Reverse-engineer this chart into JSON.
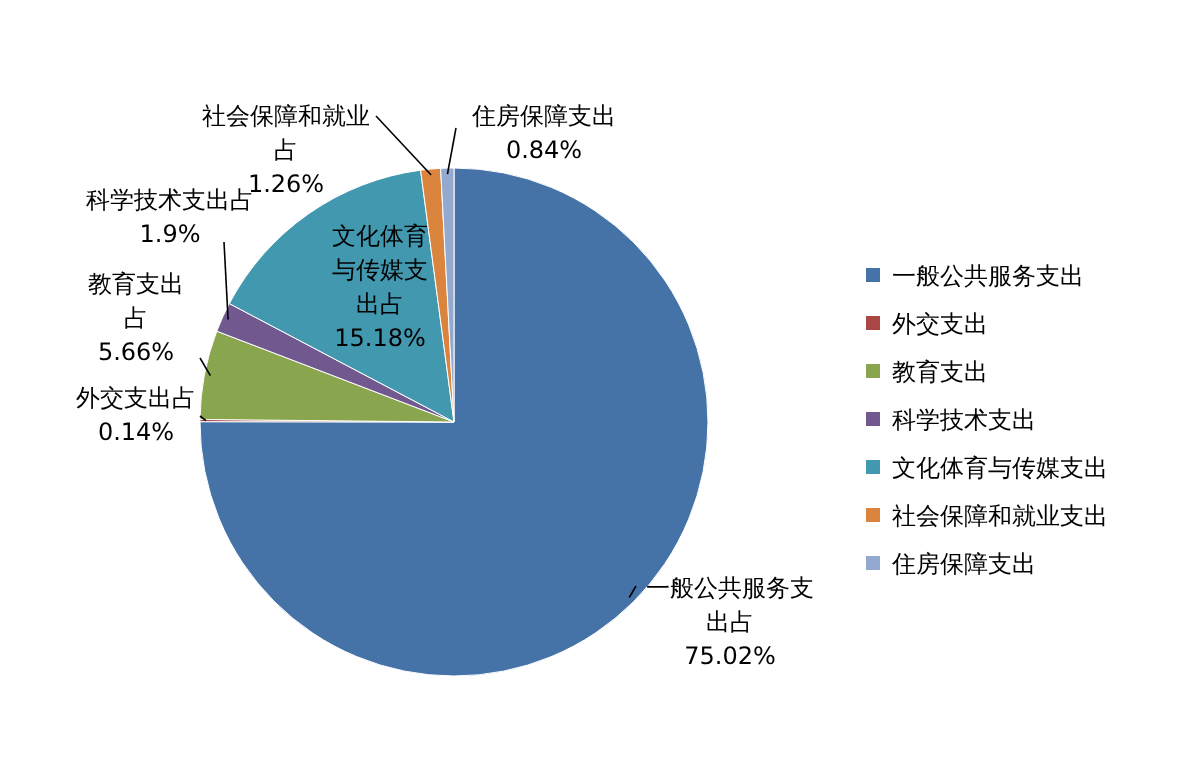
{
  "chart_data": {
    "type": "pie",
    "categories": [
      "一般公共服务支出",
      "外交支出",
      "教育支出",
      "科学技术支出",
      "文化体育与传媒支出",
      "社会保障和就业支出",
      "住房保障支出"
    ],
    "values": [
      75.02,
      0.14,
      5.66,
      1.9,
      15.18,
      1.26,
      0.84
    ],
    "colors": [
      "#4572a7",
      "#aa4643",
      "#89a54e",
      "#71588f",
      "#4198af",
      "#db843d",
      "#93a9cf"
    ],
    "value_labels": [
      "一般公共服务支出占 75.02%",
      "外交支出占 0.14%",
      "教育支出占 5.66%",
      "科学技术支出占 1.9%",
      "文化体育与传媒支出占 15.18%",
      "社会保障和就业占 1.26%",
      "住房保障支出 0.84%"
    ],
    "legend": "right"
  }
}
